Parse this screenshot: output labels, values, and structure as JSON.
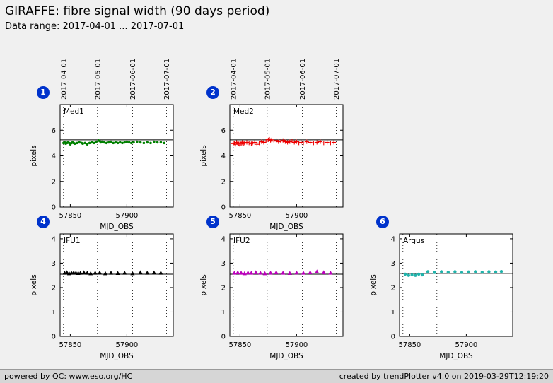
{
  "header": {
    "title": "GIRAFFE: fibre signal width (90 days period)",
    "subtitle": "Data range: 2017-04-01 ... 2017-07-01"
  },
  "footer": {
    "left": "powered by QC: www.eso.org/HC",
    "right": "created by trendPlotter v4.0 on 2019-03-29T12:19:20"
  },
  "style": {
    "badge_color": "#0033cc",
    "background": "#f0f0f0",
    "footer_background": "#d6d6d6"
  },
  "chart_data": [
    {
      "type": "scatter",
      "id": "1",
      "label": "Med1",
      "marker": "circle",
      "color": "#008000",
      "xlabel": "MJD_OBS",
      "ylabel": "pixels",
      "xlim": [
        57841,
        57941
      ],
      "ylim": [
        0,
        8
      ],
      "xticks": [
        57850,
        57900
      ],
      "yticks": [
        0,
        2,
        4,
        6
      ],
      "grid_x": [
        57844,
        57874,
        57905,
        57935
      ],
      "top_labels": [
        "2017-04-01",
        "2017-05-01",
        "2017-06-01",
        "2017-07-01"
      ],
      "ref_line": 5.25,
      "x": [
        57844,
        57845,
        57846,
        57847,
        57848,
        57849,
        57850,
        57851,
        57852,
        57853,
        57854,
        57856,
        57858,
        57860,
        57861,
        57863,
        57865,
        57867,
        57869,
        57871,
        57873,
        57875,
        57876,
        57877,
        57878,
        57880,
        57882,
        57884,
        57886,
        57888,
        57890,
        57892,
        57894,
        57896,
        57898,
        57900,
        57902,
        57904,
        57906,
        57909,
        57912,
        57915,
        57918,
        57921,
        57924,
        57927,
        57930,
        57933
      ],
      "y": [
        5.0,
        5.05,
        4.95,
        5.0,
        5.05,
        5.0,
        4.9,
        5.0,
        5.05,
        5.0,
        4.95,
        5.0,
        5.05,
        5.0,
        4.95,
        5.0,
        4.9,
        5.0,
        5.05,
        5.0,
        5.1,
        5.2,
        5.15,
        5.05,
        5.1,
        5.05,
        5.0,
        5.05,
        5.1,
        5.0,
        5.05,
        5.0,
        5.05,
        5.0,
        5.05,
        5.1,
        5.05,
        5.0,
        5.05,
        5.1,
        5.05,
        5.0,
        5.05,
        5.0,
        5.1,
        5.05,
        5.05,
        5.0
      ]
    },
    {
      "type": "scatter",
      "id": "2",
      "label": "Med2",
      "marker": "plus",
      "color": "#ee0000",
      "xlabel": "MJD_OBS",
      "ylabel": "pixels",
      "xlim": [
        57841,
        57941
      ],
      "ylim": [
        0,
        8
      ],
      "xticks": [
        57850,
        57900
      ],
      "yticks": [
        0,
        2,
        4,
        6
      ],
      "grid_x": [
        57844,
        57874,
        57905,
        57935
      ],
      "top_labels": [
        "2017-04-01",
        "2017-05-01",
        "2017-06-01",
        "2017-07-01"
      ],
      "ref_line": 5.25,
      "x": [
        57844,
        57845,
        57846,
        57847,
        57848,
        57849,
        57850,
        57851,
        57852,
        57853,
        57854,
        57856,
        57858,
        57860,
        57861,
        57863,
        57865,
        57867,
        57869,
        57871,
        57873,
        57875,
        57876,
        57877,
        57878,
        57880,
        57882,
        57884,
        57886,
        57888,
        57890,
        57892,
        57894,
        57896,
        57898,
        57900,
        57902,
        57904,
        57906,
        57909,
        57912,
        57915,
        57918,
        57921,
        57924,
        57927,
        57930,
        57933
      ],
      "y": [
        4.95,
        5.0,
        4.9,
        5.05,
        5.0,
        4.95,
        4.85,
        5.0,
        5.05,
        4.95,
        5.0,
        5.05,
        5.0,
        4.95,
        5.0,
        5.05,
        4.9,
        5.0,
        5.1,
        5.05,
        5.15,
        5.25,
        5.3,
        5.2,
        5.25,
        5.15,
        5.2,
        5.1,
        5.15,
        5.2,
        5.1,
        5.05,
        5.1,
        5.15,
        5.05,
        5.1,
        5.0,
        5.05,
        5.0,
        5.1,
        5.05,
        5.0,
        5.05,
        5.1,
        5.0,
        5.05,
        5.0,
        5.05
      ]
    },
    {
      "type": "scatter",
      "id": "4",
      "label": "IFU1",
      "marker": "triangle",
      "color": "#000000",
      "xlabel": "MJD_OBS",
      "ylabel": "pixels",
      "xlim": [
        57841,
        57941
      ],
      "ylim": [
        0,
        4.2
      ],
      "xticks": [
        57850,
        57900
      ],
      "yticks": [
        0,
        1,
        2,
        3,
        4
      ],
      "grid_x": [
        57844,
        57874,
        57905,
        57935
      ],
      "top_labels": [],
      "ref_line": 2.55,
      "x": [
        57845,
        57847,
        57849,
        57851,
        57853,
        57855,
        57857,
        57859,
        57862,
        57865,
        57868,
        57872,
        57876,
        57881,
        57886,
        57892,
        57898,
        57905,
        57912,
        57918,
        57924,
        57930
      ],
      "y": [
        2.6,
        2.62,
        2.58,
        2.6,
        2.61,
        2.6,
        2.59,
        2.6,
        2.62,
        2.6,
        2.58,
        2.6,
        2.61,
        2.58,
        2.6,
        2.59,
        2.6,
        2.58,
        2.62,
        2.6,
        2.61,
        2.6
      ]
    },
    {
      "type": "scatter",
      "id": "5",
      "label": "IFU2",
      "marker": "triangle",
      "color": "#bb00bb",
      "xlabel": "MJD_OBS",
      "ylabel": "pixels",
      "xlim": [
        57841,
        57941
      ],
      "ylim": [
        0,
        4.2
      ],
      "xticks": [
        57850,
        57900
      ],
      "yticks": [
        0,
        1,
        2,
        3,
        4
      ],
      "grid_x": [
        57844,
        57874,
        57905,
        57935
      ],
      "top_labels": [],
      "ref_line": 2.55,
      "x": [
        57845,
        57848,
        57851,
        57854,
        57857,
        57860,
        57864,
        57868,
        57872,
        57877,
        57882,
        57888,
        57894,
        57900,
        57906,
        57912,
        57918,
        57924,
        57930
      ],
      "y": [
        2.6,
        2.62,
        2.6,
        2.58,
        2.61,
        2.6,
        2.62,
        2.6,
        2.58,
        2.6,
        2.62,
        2.6,
        2.59,
        2.61,
        2.6,
        2.62,
        2.65,
        2.62,
        2.6
      ]
    },
    {
      "type": "scatter",
      "id": "6",
      "label": "Argus",
      "marker": "circle",
      "color": "#20b2aa",
      "xlabel": "MJD_OBS",
      "ylabel": "pixels",
      "xlim": [
        57841,
        57941
      ],
      "ylim": [
        0,
        4.2
      ],
      "xticks": [
        57850,
        57900
      ],
      "yticks": [
        0,
        1,
        2,
        3,
        4
      ],
      "grid_x": [
        57844,
        57874,
        57905,
        57935
      ],
      "top_labels": [],
      "ref_line": 2.58,
      "x": [
        57846,
        57849,
        57852,
        57855,
        57858,
        57861,
        57866,
        57872,
        57878,
        57884,
        57890,
        57896,
        57902,
        57908,
        57914,
        57920,
        57926,
        57931
      ],
      "y": [
        2.55,
        2.5,
        2.52,
        2.5,
        2.55,
        2.52,
        2.65,
        2.62,
        2.65,
        2.63,
        2.65,
        2.62,
        2.64,
        2.65,
        2.63,
        2.65,
        2.64,
        2.66
      ]
    }
  ]
}
